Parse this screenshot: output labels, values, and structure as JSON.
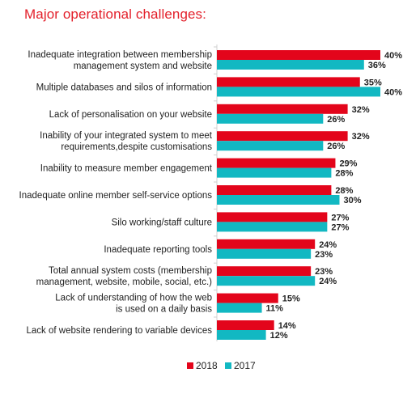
{
  "chart_data": {
    "type": "bar",
    "orientation": "horizontal",
    "title": "Major operational challenges:",
    "categories": [
      [
        "Inadequate integration between membership",
        "management system and website"
      ],
      [
        "Multiple databases and silos of information"
      ],
      [
        "Lack of personalisation on your website"
      ],
      [
        "Inability of your integrated system to meet",
        "requirements,despite customisations"
      ],
      [
        "Inability to measure member engagement"
      ],
      [
        "Inadequate online member self-service options"
      ],
      [
        "Silo working/staff culture"
      ],
      [
        "Inadequate reporting tools"
      ],
      [
        "Total annual system costs (membership",
        "management, website, mobile, social, etc.)"
      ],
      [
        "Lack of understanding of how the web",
        "is used on a daily basis"
      ],
      [
        "Lack of website rendering to variable devices"
      ]
    ],
    "series": [
      {
        "name": "2018",
        "color": "#e3051b",
        "values": [
          40,
          35,
          32,
          32,
          29,
          28,
          27,
          24,
          23,
          15,
          14
        ],
        "labels": [
          "40%",
          "35%",
          "32%",
          "32%",
          "29%",
          "28%",
          "27%",
          "24%",
          "23%",
          "15%",
          "14%"
        ]
      },
      {
        "name": "2017",
        "color": "#12b8c2",
        "values": [
          36,
          40,
          26,
          26,
          28,
          30,
          27,
          23,
          24,
          11,
          12
        ],
        "labels": [
          "36%",
          "40%",
          "26%",
          "26%",
          "28%",
          "30%",
          "27%",
          "23%",
          "24%",
          "11%",
          "12%"
        ]
      }
    ],
    "xlim": [
      0,
      40
    ],
    "grid": false,
    "legend": "bottom-center"
  }
}
